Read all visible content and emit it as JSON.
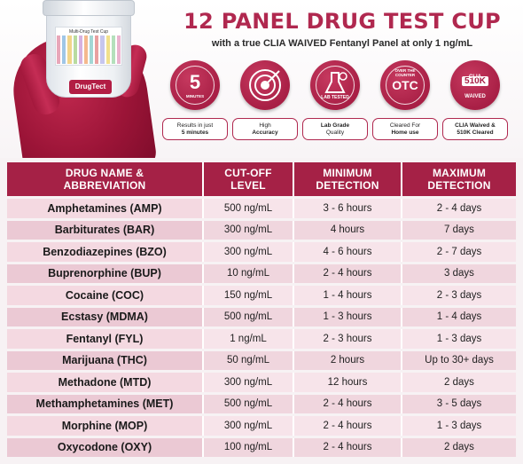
{
  "header": {
    "title": "12 PANEL DRUG TEST CUP",
    "subtitle": "with a true CLIA WAIVED Fentanyl Panel at only 1 ng/mL"
  },
  "product": {
    "cup_label": "Multi-Drug Test Cup",
    "brand": "DrugTect"
  },
  "features": [
    {
      "icon": "timer-5-minutes-icon",
      "badge_text": "5",
      "badge_sub": "MINUTES",
      "caption_line1": "Results in just",
      "caption_line2": "5 minutes"
    },
    {
      "icon": "target-accuracy-icon",
      "badge_text": "",
      "badge_sub": "",
      "caption_line1": "High",
      "caption_line2": "Accuracy"
    },
    {
      "icon": "lab-flask-icon",
      "badge_text": "",
      "badge_sub": "LAB TESTED",
      "caption_line1": "Lab Grade",
      "caption_line2": "Quality"
    },
    {
      "icon": "otc-seal-icon",
      "badge_text": "OTC",
      "badge_sub": "OVER THE COUNTER",
      "caption_line1": "Cleared For",
      "caption_line2": "Home use"
    },
    {
      "icon": "clia-510k-icon",
      "badge_text": "510K",
      "badge_sub": "CLIA WAIVED",
      "caption_line1": "CLIA Waived &",
      "caption_line2": "510K Cleared"
    }
  ],
  "table": {
    "headers": [
      "DRUG NAME & ABBREVIATION",
      "CUT-OFF LEVEL",
      "MINIMUM DETECTION",
      "MAXIMUM DETECTION"
    ],
    "rows": [
      [
        "Amphetamines (AMP)",
        "500 ng/mL",
        "3 - 6 hours",
        "2 - 4 days"
      ],
      [
        "Barbiturates (BAR)",
        "300 ng/mL",
        "4 hours",
        "7 days"
      ],
      [
        "Benzodiazepines (BZO)",
        "300 ng/mL",
        "4 - 6 hours",
        "2 - 7 days"
      ],
      [
        "Buprenorphine (BUP)",
        "10 ng/mL",
        "2 - 4 hours",
        "3 days"
      ],
      [
        "Cocaine (COC)",
        "150 ng/mL",
        "1 - 4 hours",
        "2 - 3 days"
      ],
      [
        "Ecstasy (MDMA)",
        "500 ng/mL",
        "1 - 3 hours",
        "1 - 4 days"
      ],
      [
        "Fentanyl (FYL)",
        "1 ng/mL",
        "2 - 3 hours",
        "1 - 3 days"
      ],
      [
        "Marijuana (THC)",
        "50 ng/mL",
        "2 hours",
        "Up to 30+ days"
      ],
      [
        "Methadone (MTD)",
        "300 ng/mL",
        "12 hours",
        "2 days"
      ],
      [
        "Methamphetamines (MET)",
        "500 ng/mL",
        "2 - 4 hours",
        "3 - 5 days"
      ],
      [
        "Morphine (MOP)",
        "300 ng/mL",
        "2 - 4 hours",
        "1 - 3 days"
      ],
      [
        "Oxycodone (OXY)",
        "100 ng/mL",
        "2 - 4 hours",
        "2 days"
      ]
    ]
  },
  "colors": {
    "accent": "#a52146",
    "row_light": "#f7e4ea",
    "row_dark": "#f0d6de"
  }
}
